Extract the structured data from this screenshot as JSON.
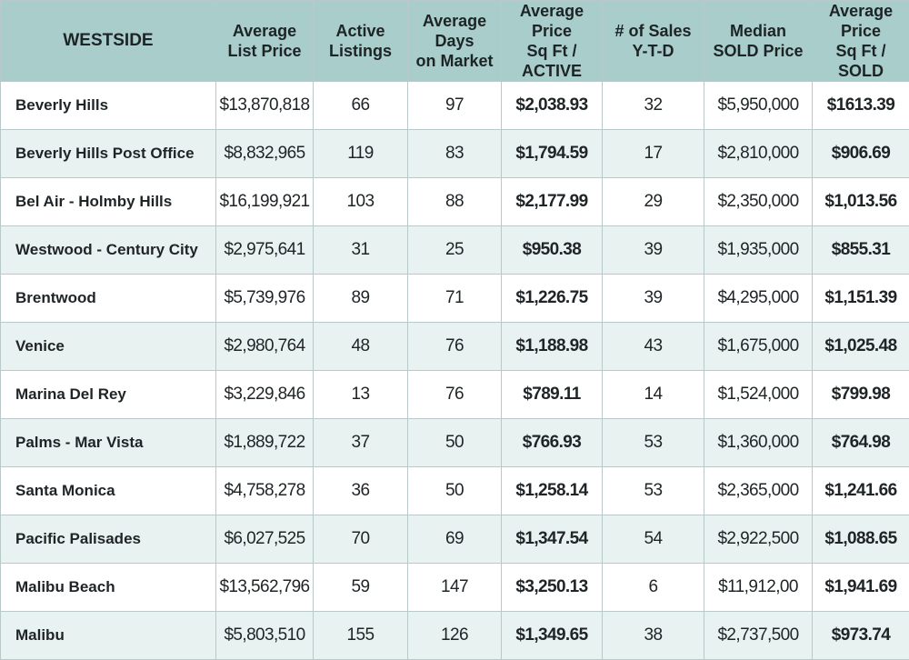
{
  "chart_data": {
    "type": "table",
    "columns": [
      [
        "WESTSIDE"
      ],
      [
        "Average",
        "List Price"
      ],
      [
        "Active",
        "Listings"
      ],
      [
        "Average",
        "Days",
        "on Market"
      ],
      [
        "Average Price",
        "Sq Ft / ACTIVE"
      ],
      [
        "# of Sales",
        "Y-T-D"
      ],
      [
        "Median",
        "SOLD Price"
      ],
      [
        "Average Price",
        "Sq Ft / SOLD"
      ]
    ],
    "rows": [
      [
        "Beverly Hills",
        "$13,870,818",
        "66",
        "97",
        "$2,038.93",
        "32",
        "$5,950,000",
        "$1613.39"
      ],
      [
        "Beverly Hills Post Office",
        "$8,832,965",
        "119",
        "83",
        "$1,794.59",
        "17",
        "$2,810,000",
        "$906.69"
      ],
      [
        "Bel Air - Holmby Hills",
        "$16,199,921",
        "103",
        "88",
        "$2,177.99",
        "29",
        "$2,350,000",
        "$1,013.56"
      ],
      [
        "Westwood - Century City",
        "$2,975,641",
        "31",
        "25",
        "$950.38",
        "39",
        "$1,935,000",
        "$855.31"
      ],
      [
        "Brentwood",
        "$5,739,976",
        "89",
        "71",
        "$1,226.75",
        "39",
        "$4,295,000",
        "$1,151.39"
      ],
      [
        "Venice",
        "$2,980,764",
        "48",
        "76",
        "$1,188.98",
        "43",
        "$1,675,000",
        "$1,025.48"
      ],
      [
        "Marina Del Rey",
        "$3,229,846",
        "13",
        "76",
        "$789.11",
        "14",
        "$1,524,000",
        "$799.98"
      ],
      [
        "Palms - Mar Vista",
        "$1,889,722",
        "37",
        "50",
        "$766.93",
        "53",
        "$1,360,000",
        "$764.98"
      ],
      [
        "Santa Monica",
        "$4,758,278",
        "36",
        "50",
        "$1,258.14",
        "53",
        "$2,365,000",
        "$1,241.66"
      ],
      [
        "Pacific Palisades",
        "$6,027,525",
        "70",
        "69",
        "$1,347.54",
        "54",
        "$2,922,500",
        "$1,088.65"
      ],
      [
        "Malibu Beach",
        "$13,562,796",
        "59",
        "147",
        "$3,250.13",
        "6",
        "$11,912,00",
        "$1,941.69"
      ],
      [
        "Malibu",
        "$5,803,510",
        "155",
        "126",
        "$1,349.65",
        "38",
        "$2,737,500",
        "$973.74"
      ]
    ],
    "bold_columns": [
      0,
      4,
      7
    ],
    "colors": {
      "header_bg": "#a9cdca",
      "stripe_bg": "#e8f2f0",
      "grid_line": "#b9c8c8",
      "text": "#1f2426"
    }
  }
}
